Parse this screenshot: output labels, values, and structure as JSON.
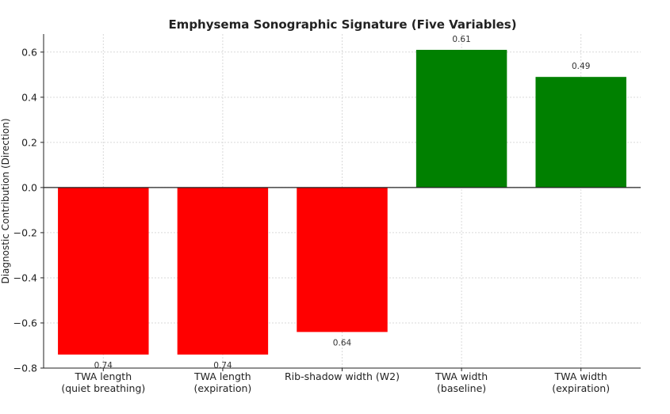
{
  "chart_data": {
    "type": "bar",
    "title": "Emphysema Sonographic Signature (Five Variables)",
    "ylabel": "Diagnostic Contribution (Direction)",
    "xlabel": "",
    "ylim": [
      -0.8,
      0.68
    ],
    "yticks": [
      -0.8,
      -0.6,
      -0.4,
      -0.2,
      0.0,
      0.2,
      0.4,
      0.6
    ],
    "ytick_labels": [
      "−0.8",
      "−0.6",
      "−0.4",
      "−0.2",
      "0.0",
      "0.2",
      "0.4",
      "0.6"
    ],
    "grid": true,
    "categories": [
      [
        "TWA length",
        "(quiet breathing)"
      ],
      [
        "TWA length",
        "(expiration)"
      ],
      [
        "Rib-shadow width (W2)"
      ],
      [
        "TWA width",
        "(baseline)"
      ],
      [
        "TWA width",
        "(expiration)"
      ]
    ],
    "values": [
      -0.74,
      -0.74,
      -0.64,
      0.61,
      0.49
    ],
    "data_labels": [
      "0.74",
      "0.74",
      "0.64",
      "0.61",
      "0.49"
    ],
    "colors": [
      "#ff0000",
      "#ff0000",
      "#ff0000",
      "#008000",
      "#008000"
    ]
  }
}
